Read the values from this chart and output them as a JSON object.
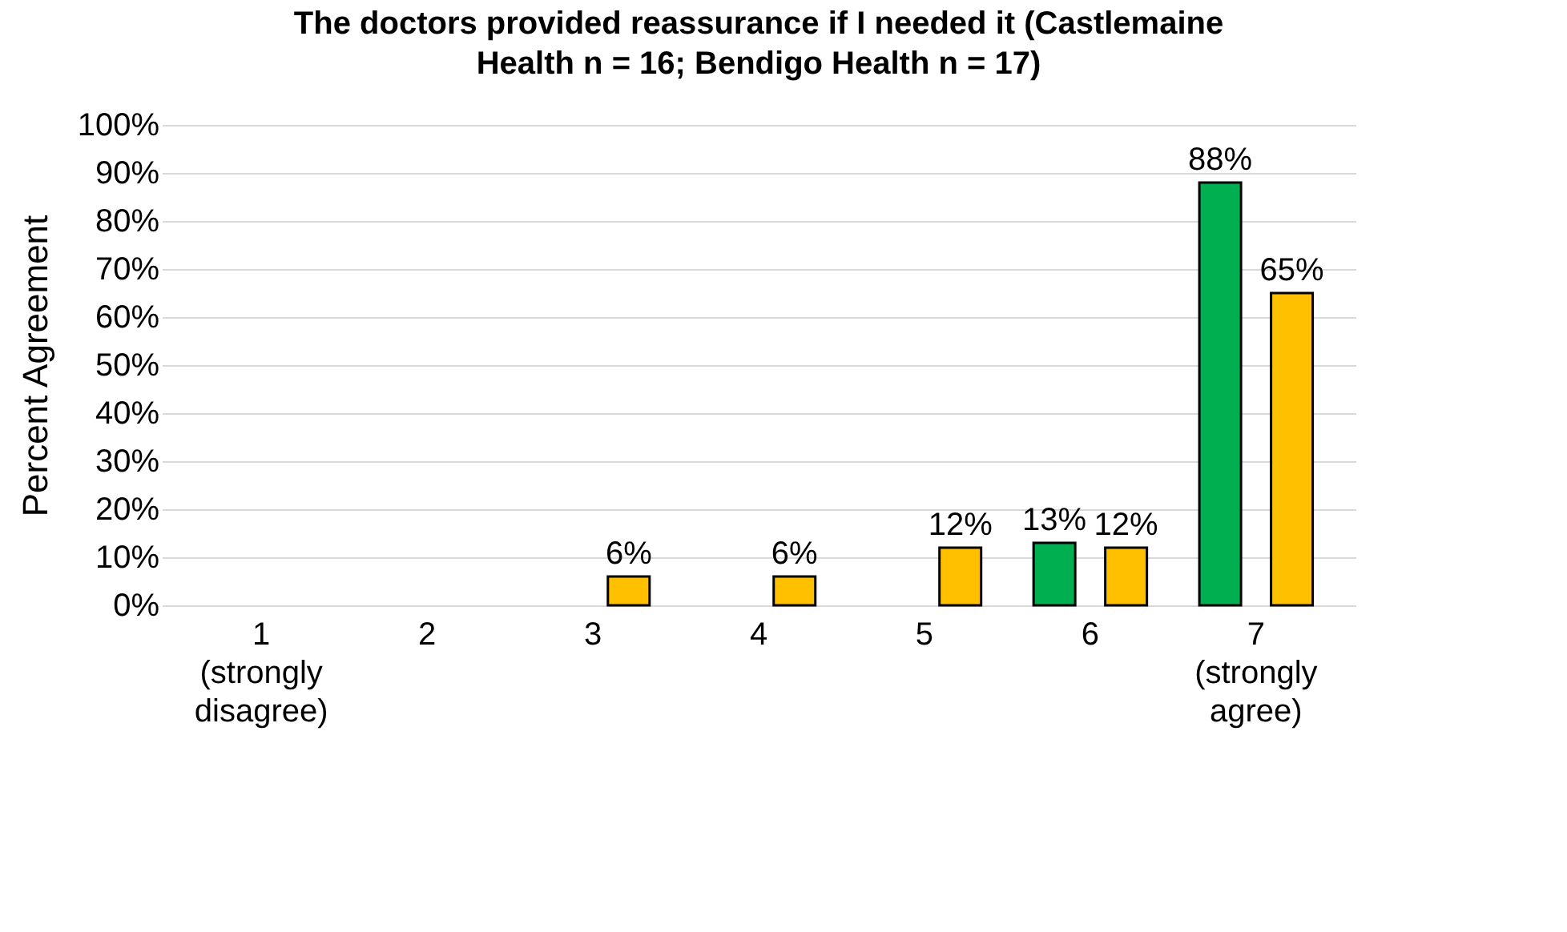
{
  "chart_data": {
    "type": "bar",
    "title": "The doctors provided reassurance if I needed it (Castlemaine Health n = 16; Bendigo Health n = 17)",
    "ylabel": "Percent Agreement",
    "categories": [
      "1\n(strongly\ndisagree)",
      "2",
      "3",
      "4",
      "5",
      "6",
      "7\n(strongly\nagree)"
    ],
    "series": [
      {
        "color": "#00b050",
        "values": [
          null,
          null,
          null,
          null,
          null,
          13,
          88
        ],
        "value_labels": [
          null,
          null,
          null,
          null,
          null,
          "13%",
          "88%"
        ]
      },
      {
        "color": "#ffc000",
        "values": [
          null,
          null,
          6,
          6,
          12,
          12,
          65
        ],
        "value_labels": [
          null,
          null,
          "6%",
          "6%",
          "12%",
          "12%",
          "65%"
        ]
      }
    ],
    "ylim": [
      0,
      100
    ],
    "yticks": [
      {
        "value": 0,
        "label": "0%"
      },
      {
        "value": 10,
        "label": "10%"
      },
      {
        "value": 20,
        "label": "20%"
      },
      {
        "value": 30,
        "label": "30%"
      },
      {
        "value": 40,
        "label": "40%"
      },
      {
        "value": 50,
        "label": "50%"
      },
      {
        "value": 60,
        "label": "60%"
      },
      {
        "value": 70,
        "label": "70%"
      },
      {
        "value": 80,
        "label": "80%"
      },
      {
        "value": 90,
        "label": "90%"
      },
      {
        "value": 100,
        "label": "100%"
      }
    ],
    "grid": "y",
    "legend": false
  }
}
